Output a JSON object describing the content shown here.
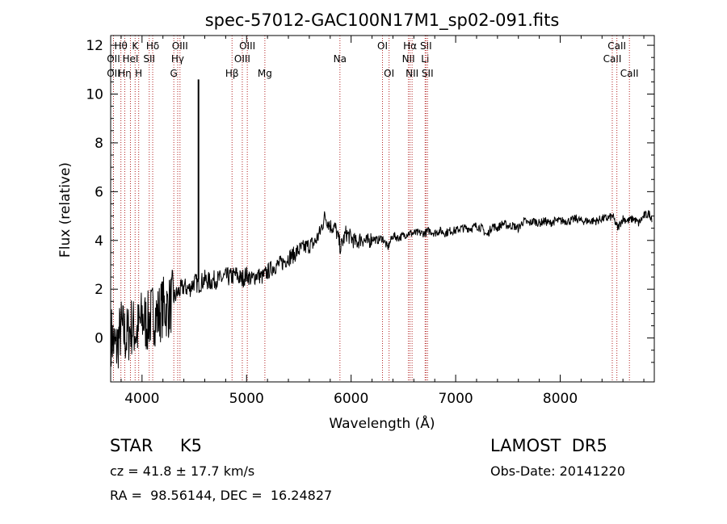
{
  "chart_data": {
    "type": "line",
    "title": "spec-57012-GAC100N17M1_sp02-091.fits",
    "xlabel": "Wavelength (Å)",
    "ylabel": "Flux (relative)",
    "xlim": [
      3700,
      8900
    ],
    "ylim": [
      -1.8,
      12.4
    ],
    "xticks": [
      4000,
      5000,
      6000,
      7000,
      8000
    ],
    "xtick_labels": [
      "4000",
      "5000",
      "6000",
      "7000",
      "8000"
    ],
    "yticks": [
      0,
      2,
      4,
      6,
      8,
      10,
      12
    ],
    "ytick_labels": [
      "0",
      "2",
      "4",
      "6",
      "8",
      "10",
      "12"
    ],
    "grid": false,
    "series": [
      {
        "x": [
          3700,
          3750,
          3800,
          3850,
          3900,
          3950,
          4000,
          4050,
          4100,
          4150,
          4200,
          4250,
          4300,
          4350,
          4400,
          4450,
          4500,
          4540,
          4600,
          4650,
          4700,
          4750,
          4800,
          4850,
          4900,
          4950,
          5000,
          5050,
          5100,
          5150,
          5200,
          5250,
          5300,
          5350,
          5400,
          5450,
          5500,
          5550,
          5600,
          5650,
          5700,
          5750,
          5800,
          5850,
          5900,
          5950,
          6000,
          6050,
          6100,
          6150,
          6200,
          6250,
          6300,
          6350,
          6400,
          6450,
          6500,
          6550,
          6600,
          6650,
          6700,
          6750,
          6800,
          6850,
          6900,
          6950,
          7000,
          7050,
          7100,
          7150,
          7200,
          7250,
          7300,
          7350,
          7400,
          7450,
          7500,
          7550,
          7600,
          7650,
          7700,
          7750,
          7800,
          7850,
          7900,
          7950,
          8000,
          8050,
          8100,
          8150,
          8200,
          8250,
          8300,
          8350,
          8400,
          8450,
          8500,
          8550,
          8600,
          8650,
          8700,
          8750,
          8800,
          8850,
          8880
        ],
        "values": [
          0.2,
          -0.5,
          0.4,
          0.0,
          0.5,
          0.2,
          0.8,
          0.6,
          1.0,
          0.9,
          1.3,
          1.2,
          1.6,
          1.9,
          2.1,
          2.0,
          2.3,
          2.2,
          2.4,
          2.3,
          2.4,
          2.4,
          2.5,
          2.5,
          2.6,
          2.4,
          2.6,
          2.4,
          2.6,
          2.5,
          2.7,
          2.9,
          3.0,
          3.1,
          3.3,
          3.4,
          3.6,
          3.7,
          3.8,
          3.9,
          4.3,
          5.0,
          4.6,
          4.5,
          3.7,
          4.3,
          4.1,
          3.9,
          4.1,
          3.9,
          4.1,
          4.0,
          4.1,
          3.7,
          4.2,
          4.1,
          4.2,
          4.3,
          4.3,
          4.3,
          4.3,
          4.4,
          4.3,
          4.4,
          4.3,
          4.4,
          4.4,
          4.5,
          4.5,
          4.5,
          4.6,
          4.5,
          4.2,
          4.6,
          4.5,
          4.7,
          4.6,
          4.6,
          4.5,
          4.8,
          4.7,
          4.8,
          4.7,
          4.8,
          4.7,
          4.8,
          4.8,
          4.8,
          4.8,
          4.9,
          4.8,
          4.8,
          4.8,
          4.8,
          4.9,
          4.9,
          5.0,
          4.5,
          4.9,
          4.8,
          4.9,
          4.7,
          5.0,
          5.1,
          4.9
        ]
      }
    ],
    "lines": [
      {
        "label": "Hβ",
        "wl": 4861,
        "row": 3
      },
      {
        "label": "OIII",
        "wl": 4959,
        "row": 2
      },
      {
        "label": "OIII",
        "wl": 5007,
        "row": 1
      },
      {
        "label": "Mg",
        "wl": 5175,
        "row": 3
      },
      {
        "label": "Na",
        "wl": 5893,
        "row": 2
      },
      {
        "label": "OI",
        "wl": 6300,
        "row": 1
      },
      {
        "label": "OI",
        "wl": 6363,
        "row": 3
      },
      {
        "label": "NII",
        "wl": 6548,
        "row": 2
      },
      {
        "label": "Hα",
        "wl": 6563,
        "row": 1
      },
      {
        "label": "NII",
        "wl": 6583,
        "row": 3
      },
      {
        "label": "Li",
        "wl": 6708,
        "row": 2
      },
      {
        "label": "SII",
        "wl": 6716,
        "row": 1
      },
      {
        "label": "SII",
        "wl": 6731,
        "row": 3
      },
      {
        "label": "CaII",
        "wl": 8498,
        "row": 2
      },
      {
        "label": "CaII",
        "wl": 8542,
        "row": 1
      },
      {
        "label": "CaII",
        "wl": 8662,
        "row": 3
      }
    ],
    "blue_lines": [
      {
        "label": "OII",
        "wl": 3727,
        "row": 2
      },
      {
        "label": "OII",
        "wl": 3727,
        "row": 3
      },
      {
        "label": "Hθ",
        "wl": 3798,
        "row": 1
      },
      {
        "label": "Hη",
        "wl": 3835,
        "row": 3
      },
      {
        "label": "HeI",
        "wl": 3889,
        "row": 2
      },
      {
        "label": "K",
        "wl": 3934,
        "row": 1
      },
      {
        "label": "H",
        "wl": 3968,
        "row": 3
      },
      {
        "label": "SII",
        "wl": 4069,
        "row": 2
      },
      {
        "label": "Hδ",
        "wl": 4102,
        "row": 1
      },
      {
        "label": "G",
        "wl": 4304,
        "row": 3
      },
      {
        "label": "Hγ",
        "wl": 4341,
        "row": 2
      },
      {
        "label": "OIII",
        "wl": 4363,
        "row": 1
      }
    ]
  },
  "info": {
    "class_line": "STAR     K5",
    "survey": "LAMOST  DR5",
    "cz": "cz = 41.8 ± 17.7 km/s",
    "obs_date": "Obs-Date: 20141220",
    "coords": "RA =  98.56144, DEC =  16.24827"
  },
  "colors": {
    "spectrum": "#000000",
    "line_marker": "#b22222",
    "background": "#ffffff"
  }
}
